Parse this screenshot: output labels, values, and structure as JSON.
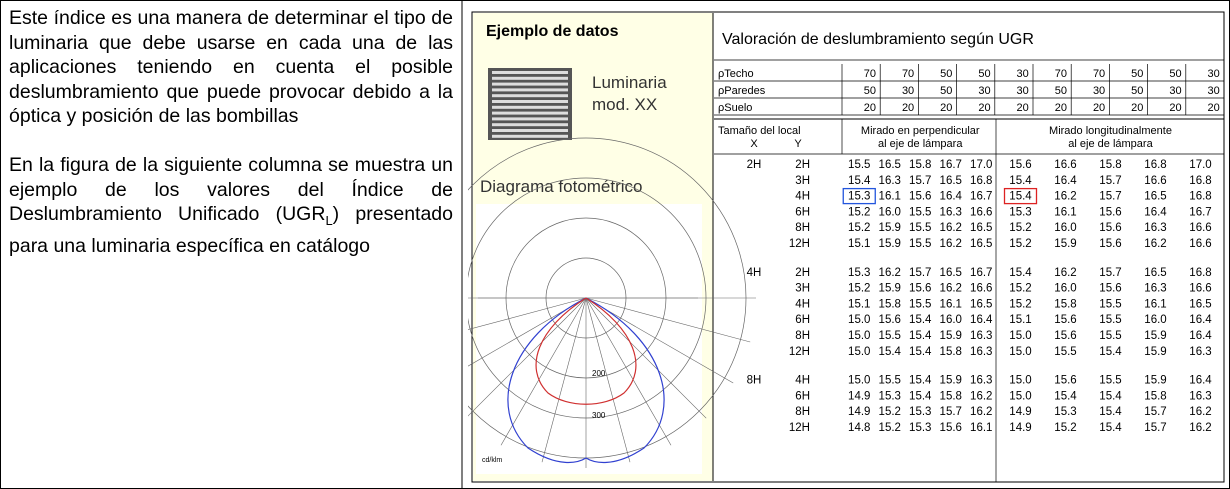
{
  "text": {
    "paragraph1": "Este índice es una manera de determinar el tipo de luminaria que debe usarse en cada una de las aplicaciones teniendo en cuenta el posible deslumbramiento que puede provocar debido a la óptica y posición de las bombillas",
    "paragraph2_start": "En la figura de la siguiente columna se muestra un ejemplo de los valores del Índice de Deslumbramiento Unificado (UGR",
    "paragraph2_sub": "L",
    "paragraph2_end": ") presentado para una luminaria específica en catálogo"
  },
  "figure": {
    "panel_title": "Ejemplo de datos",
    "luminaire_label": [
      "Luminaria",
      "mod. XX"
    ],
    "diagram_title": "Diagrama fotométrico",
    "diagram_labels": [
      "200",
      "300",
      "cd/klm"
    ],
    "table_title": "Valoración de deslumbramiento según UGR",
    "reflectances": [
      {
        "label": "ρTecho",
        "values": [
          "70",
          "70",
          "50",
          "50",
          "30",
          "70",
          "70",
          "50",
          "50",
          "30"
        ]
      },
      {
        "label": "ρParedes",
        "values": [
          "50",
          "30",
          "50",
          "30",
          "30",
          "50",
          "30",
          "50",
          "30",
          "30"
        ]
      },
      {
        "label": "ρSuelo",
        "values": [
          "20",
          "20",
          "20",
          "20",
          "20",
          "20",
          "20",
          "20",
          "20",
          "20"
        ]
      }
    ],
    "size_header": "Tamaño del local",
    "x_header": "X",
    "y_header": "Y",
    "group_headers": [
      [
        "Mirado en perpendicular",
        "al eje de lámpara"
      ],
      [
        "Mirado longitudinalmente",
        "al eje de lámpara"
      ]
    ],
    "groups": [
      {
        "x": "2H",
        "rows": [
          {
            "y": "2H",
            "values": [
              "15.5",
              "16.5",
              "15.8",
              "16.7",
              "17.0",
              "15.6",
              "16.6",
              "15.8",
              "16.8",
              "17.0"
            ]
          },
          {
            "y": "3H",
            "values": [
              "15.4",
              "16.3",
              "15.7",
              "16.5",
              "16.8",
              "15.4",
              "16.4",
              "15.7",
              "16.6",
              "16.8"
            ]
          },
          {
            "y": "4H",
            "values": [
              "15.3",
              "16.1",
              "15.6",
              "16.4",
              "16.7",
              "15.4",
              "16.2",
              "15.7",
              "16.5",
              "16.8"
            ]
          },
          {
            "y": "6H",
            "values": [
              "15.2",
              "16.0",
              "15.5",
              "16.3",
              "16.6",
              "15.3",
              "16.1",
              "15.6",
              "16.4",
              "16.7"
            ]
          },
          {
            "y": "8H",
            "values": [
              "15.2",
              "15.9",
              "15.5",
              "16.2",
              "16.5",
              "15.2",
              "16.0",
              "15.6",
              "16.3",
              "16.6"
            ]
          },
          {
            "y": "12H",
            "values": [
              "15.1",
              "15.9",
              "15.5",
              "16.2",
              "16.5",
              "15.2",
              "15.9",
              "15.6",
              "16.2",
              "16.6"
            ]
          }
        ]
      },
      {
        "x": "4H",
        "rows": [
          {
            "y": "2H",
            "values": [
              "15.3",
              "16.2",
              "15.7",
              "16.5",
              "16.7",
              "15.4",
              "16.2",
              "15.7",
              "16.5",
              "16.8"
            ]
          },
          {
            "y": "3H",
            "values": [
              "15.2",
              "15.9",
              "15.6",
              "16.2",
              "16.6",
              "15.2",
              "16.0",
              "15.6",
              "16.3",
              "16.6"
            ]
          },
          {
            "y": "4H",
            "values": [
              "15.1",
              "15.8",
              "15.5",
              "16.1",
              "16.5",
              "15.2",
              "15.8",
              "15.5",
              "16.1",
              "16.5"
            ]
          },
          {
            "y": "6H",
            "values": [
              "15.0",
              "15.6",
              "15.4",
              "16.0",
              "16.4",
              "15.1",
              "15.6",
              "15.5",
              "16.0",
              "16.4"
            ]
          },
          {
            "y": "8H",
            "values": [
              "15.0",
              "15.5",
              "15.4",
              "15.9",
              "16.3",
              "15.0",
              "15.6",
              "15.5",
              "15.9",
              "16.4"
            ]
          },
          {
            "y": "12H",
            "values": [
              "15.0",
              "15.4",
              "15.4",
              "15.8",
              "16.3",
              "15.0",
              "15.5",
              "15.4",
              "15.9",
              "16.3"
            ]
          }
        ]
      },
      {
        "x": "8H",
        "rows": [
          {
            "y": "4H",
            "values": [
              "15.0",
              "15.5",
              "15.4",
              "15.9",
              "16.3",
              "15.0",
              "15.6",
              "15.5",
              "15.9",
              "16.4"
            ]
          },
          {
            "y": "6H",
            "values": [
              "14.9",
              "15.3",
              "15.4",
              "15.8",
              "16.2",
              "15.0",
              "15.4",
              "15.4",
              "15.8",
              "16.3"
            ]
          },
          {
            "y": "8H",
            "values": [
              "14.9",
              "15.2",
              "15.3",
              "15.7",
              "16.2",
              "14.9",
              "15.3",
              "15.4",
              "15.7",
              "16.2"
            ]
          },
          {
            "y": "12H",
            "values": [
              "14.8",
              "15.2",
              "15.3",
              "15.6",
              "16.1",
              "14.9",
              "15.2",
              "15.4",
              "15.7",
              "16.2"
            ]
          }
        ]
      }
    ]
  }
}
